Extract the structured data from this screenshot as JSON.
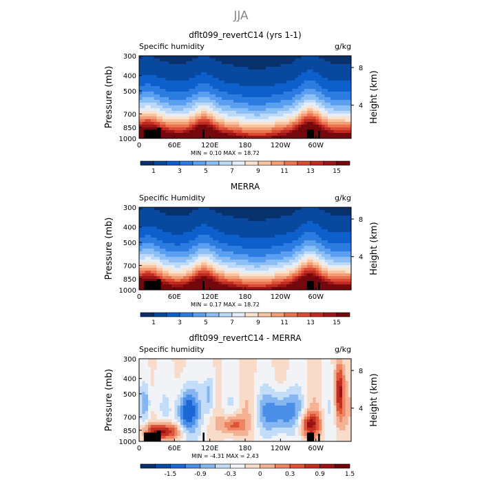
{
  "suptitle": "JJA",
  "colors": {
    "seq": [
      "#08306b",
      "#08489e",
      "#0d5fcc",
      "#2b7be0",
      "#5b9ff0",
      "#8dbff7",
      "#bcd9fa",
      "#e4eef8",
      "#fbe2cf",
      "#f9c4a1",
      "#f59d74",
      "#ec734f",
      "#db4a33",
      "#c02a1f",
      "#9e1518",
      "#75080d"
    ],
    "div": [
      "#06306b",
      "#0b4aa2",
      "#1b68d4",
      "#4a8ee8",
      "#86b6f2",
      "#c3dcf7",
      "#f1f3f6",
      "#f8dbc9",
      "#f4b193",
      "#ee8461",
      "#de5437",
      "#c22d22",
      "#9b1214",
      "#700409"
    ],
    "terrain": "#000000"
  },
  "chart_data": [
    {
      "type": "heatmap",
      "title": "dflt099_revertC14 (yrs 1-1)",
      "left_label": "Specific humidity",
      "right_label": "g/kg",
      "ylabel": "Pressure (mb)",
      "ylabel_right": "Height (km)",
      "yticks": [
        300,
        400,
        500,
        700,
        850,
        1000
      ],
      "yticks_right": [
        8,
        4
      ],
      "xticks": [
        "0",
        "60E",
        "120E",
        "180",
        "120W",
        "60W"
      ],
      "xlim": [
        0,
        360
      ],
      "ylim": [
        1000,
        300
      ],
      "stats": "MIN =     0.10   MAX =   18.72",
      "colorbar": {
        "labels": [
          "1",
          "3",
          "5",
          "7",
          "9",
          "11",
          "13",
          "15"
        ],
        "scale": "seq"
      }
    },
    {
      "type": "heatmap",
      "title": "MERRA",
      "left_label": "Specific Humidity",
      "right_label": "g/kg",
      "ylabel": "Pressure (mb)",
      "ylabel_right": "Height (km)",
      "yticks": [
        300,
        400,
        500,
        700,
        850,
        1000
      ],
      "yticks_right": [
        8,
        4
      ],
      "xticks": [
        "0",
        "60E",
        "120E",
        "180",
        "120W",
        "60W"
      ],
      "xlim": [
        0,
        360
      ],
      "ylim": [
        1000,
        300
      ],
      "stats": "MIN =     0.17   MAX =   18.72",
      "colorbar": {
        "labels": [
          "1",
          "3",
          "5",
          "7",
          "9",
          "11",
          "13",
          "15"
        ],
        "scale": "seq"
      }
    },
    {
      "type": "heatmap",
      "title": "dflt099_revertC14 - MERRA",
      "left_label": "Specific humidity",
      "right_label": "g/kg",
      "ylabel": "Pressure (mb)",
      "ylabel_right": "Height (km)",
      "yticks": [
        300,
        400,
        500,
        700,
        850,
        1000
      ],
      "yticks_right": [
        8,
        4
      ],
      "xticks": [
        "0",
        "60E",
        "120E",
        "180",
        "120W",
        "60W"
      ],
      "xlim": [
        0,
        360
      ],
      "ylim": [
        1000,
        300
      ],
      "stats": "MIN =    -4.31   MAX =    2.43",
      "colorbar": {
        "labels": [
          "-1.5",
          "-0.9",
          "-0.3",
          "0",
          "0.3",
          "0.9",
          "1.5"
        ],
        "scale": "div"
      }
    }
  ]
}
